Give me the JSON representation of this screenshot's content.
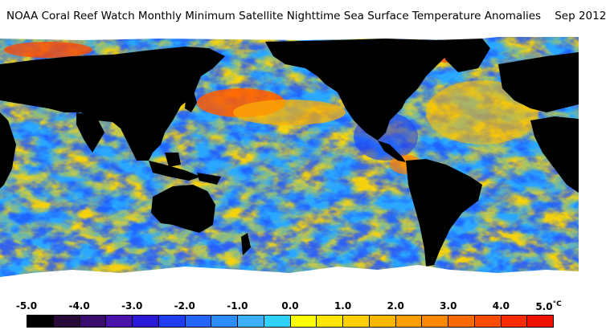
{
  "title": "NOAA Coral Reef Watch Monthly Minimum Satellite Nighttime Sea Surface Temperature Anomalies    Sep 2012",
  "legend": {
    "ticks": [
      "-5.0",
      "-4.0",
      "-3.0",
      "-2.0",
      "-1.0",
      "0.0",
      "1.0",
      "2.0",
      "3.0",
      "4.0",
      "5.0"
    ],
    "unit": "°C",
    "colors": [
      "#000000",
      "#2a0a3a",
      "#3a0a6e",
      "#4a12a8",
      "#2a1ad8",
      "#1f3ef0",
      "#2266ff",
      "#2a8cff",
      "#3ab0ff",
      "#30d0ff",
      "#ffff00",
      "#ffe600",
      "#ffd000",
      "#ffb800",
      "#ffa000",
      "#ff8800",
      "#ff6a00",
      "#ff4a00",
      "#ff2a00",
      "#ee1100"
    ]
  },
  "map_colors": {
    "land": "#000000",
    "ice": "#ffffff",
    "ocean_neutral": "#f7c81e"
  }
}
